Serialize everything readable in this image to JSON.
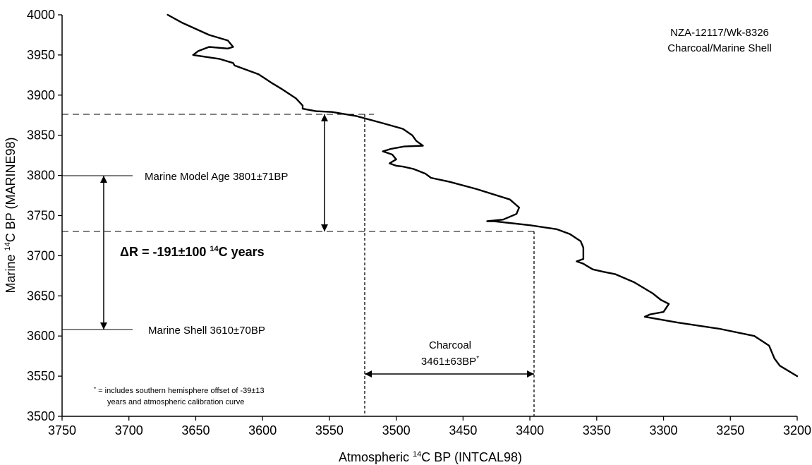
{
  "chart_data": {
    "type": "line",
    "xlabel": {
      "pre": "Atmospheric ",
      "sup": "14",
      "post": "C BP (INTCAL98)"
    },
    "ylabel": {
      "pre": "Marine ",
      "sup": "14",
      "post": "C BP (MARINE98)"
    },
    "xlim": [
      3750,
      3200
    ],
    "ylim": [
      3500,
      4000
    ],
    "x_ticks": [
      "3750",
      "3700",
      "3650",
      "3600",
      "3550",
      "3500",
      "3450",
      "3400",
      "3350",
      "3300",
      "3250",
      "3200"
    ],
    "y_ticks": [
      "3500",
      "3550",
      "3600",
      "3650",
      "3700",
      "3750",
      "3800",
      "3850",
      "3900",
      "3950",
      "4000"
    ],
    "grid": false,
    "series": [
      {
        "x": [
          3671,
          3660,
          3640,
          3626,
          3622,
          3626,
          3640,
          3648,
          3652,
          3632,
          3622,
          3621,
          3603,
          3593,
          3586,
          3575,
          3570,
          3570,
          3560,
          3548,
          3530,
          3510,
          3495,
          3488,
          3485,
          3480,
          3494,
          3504,
          3510,
          3503,
          3500,
          3505,
          3500,
          3495,
          3487,
          3478,
          3474,
          3460,
          3440,
          3415,
          3408,
          3410,
          3420,
          3432,
          3427,
          3400,
          3380,
          3370,
          3362,
          3360,
          3360,
          3360,
          3365,
          3360,
          3353,
          3345,
          3336,
          3322,
          3308,
          3302,
          3296,
          3300,
          3310,
          3314,
          3290,
          3258,
          3232,
          3221,
          3217,
          3213,
          3200
        ],
        "y": [
          4000,
          3990,
          3975,
          3968,
          3960,
          3958,
          3960,
          3955,
          3950,
          3945,
          3940,
          3937,
          3926,
          3915,
          3908,
          3896,
          3887,
          3883,
          3880,
          3879,
          3874,
          3865,
          3858,
          3850,
          3843,
          3837,
          3836,
          3833,
          3830,
          3826,
          3820,
          3815,
          3812,
          3811,
          3808,
          3802,
          3797,
          3792,
          3783,
          3770,
          3760,
          3752,
          3745,
          3743,
          3743,
          3738,
          3733,
          3727,
          3718,
          3710,
          3703,
          3696,
          3693,
          3690,
          3683,
          3680,
          3677,
          3667,
          3653,
          3645,
          3640,
          3630,
          3627,
          3624,
          3617,
          3609,
          3600,
          3588,
          3572,
          3563,
          3550
        ]
      }
    ],
    "reference_lines": [
      {
        "y_from": 3875,
        "y_to": 3730,
        "x": 3560
      },
      {
        "y_from": 3800,
        "y_to": 3610,
        "x": 3724
      },
      {
        "x_from": 3528,
        "x_to": 3400,
        "y": 3535
      }
    ],
    "annotations": {
      "sample_id": "NZA-12117/Wk-8326",
      "sample_type": "Charcoal/Marine Shell",
      "marine_model_age": "Marine Model Age 3801±71BP",
      "marine_shell": "Marine Shell 3610±70BP",
      "delta_r": {
        "pre": "ΔR = -191±100 ",
        "sup": "14",
        "post": "C years"
      },
      "charcoal_label": "Charcoal",
      "charcoal_value": {
        "main": "3461±63BP",
        "sup": "*"
      },
      "footnote": {
        "mark": "*",
        "line1": " = includes southern hemisphere offset of -39±13",
        "line2": "years and atmospheric calibration curve"
      }
    }
  }
}
